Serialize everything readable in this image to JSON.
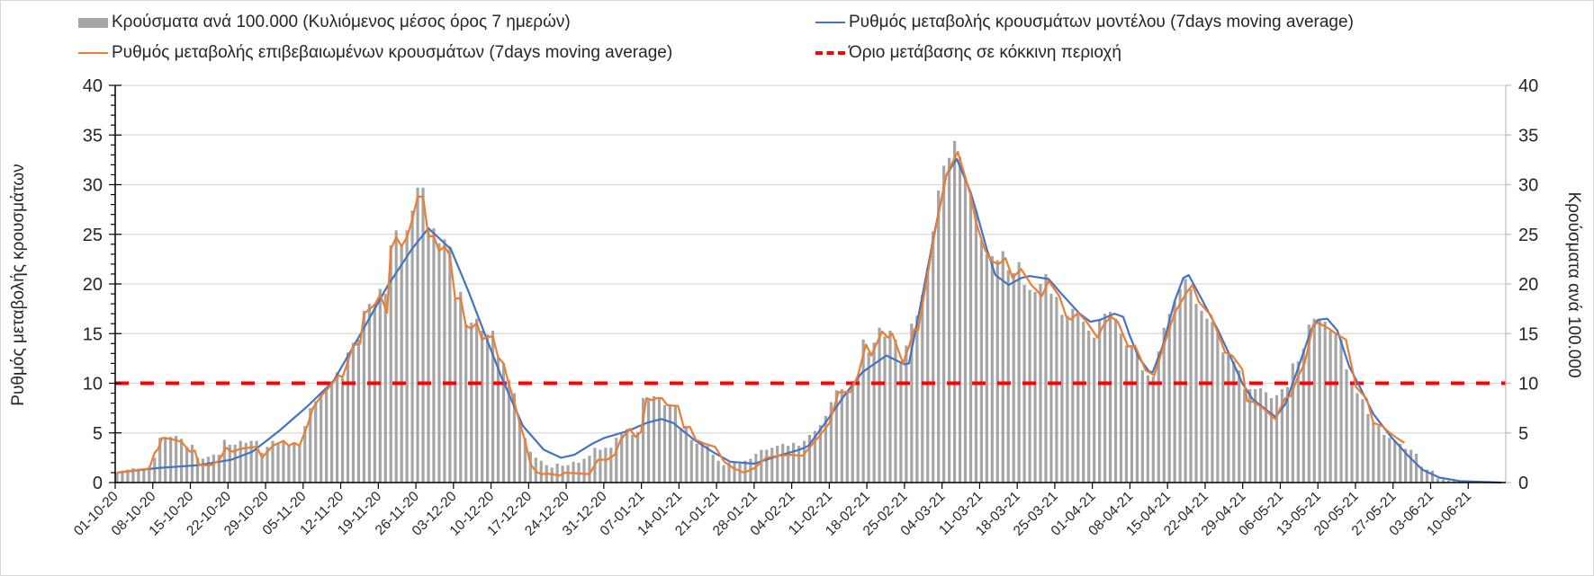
{
  "colors": {
    "bars": "#a5a5a5",
    "confirmed": "#ed7d31",
    "model": "#4472c4",
    "threshold": "#ff0000",
    "grid": "#d9d9d9"
  },
  "legend": {
    "bars": "Κρούσματα ανά 100.000 (Κυλιόμενος μέσος όρος 7 ημερών)",
    "confirmed": "Ρυθμός μεταβολής επιβεβαιωμένων κρουσμάτων (7days moving average)",
    "model": "Ρυθμός μεταβολής κρουσμάτων μοντέλου (7days moving average)",
    "threshold": "Όριο μετάβασης σε κόκκινη περιοχή"
  },
  "chart_data": {
    "type": "bar+line",
    "title": "",
    "ylabel_left": "Ρυθμός μεταβολής κρουσμάτων",
    "ylabel_right": "Κρούσματα ανά 100.000",
    "ylim": [
      0,
      40
    ],
    "yticks": [
      0,
      5,
      10,
      15,
      20,
      25,
      30,
      35,
      40
    ],
    "x_start": "01-10-20",
    "x_step_days": 1,
    "n_days": 259,
    "xtick_every_days": 7,
    "xtick_labels": [
      "01-10-20",
      "08-10-20",
      "15-10-20",
      "22-10-20",
      "29-10-20",
      "05-11-20",
      "12-11-20",
      "19-11-20",
      "26-11-20",
      "03-12-20",
      "10-12-20",
      "17-12-20",
      "24-12-20",
      "31-12-20",
      "07-01-21",
      "14-01-21",
      "21-01-21",
      "28-01-21",
      "04-02-21",
      "11-02-21",
      "18-02-21",
      "25-02-21",
      "04-03-21",
      "11-03-21",
      "18-03-21",
      "25-03-21",
      "01-04-21",
      "08-04-21",
      "15-04-21",
      "22-04-21",
      "29-04-21",
      "06-05-21",
      "13-05-21",
      "20-05-21",
      "27-05-21",
      "03-06-21",
      "10-06-21"
    ],
    "grid": true,
    "legend_position": "top",
    "threshold": 10,
    "bars": {
      "name": "Κρούσματα ανά 100.000 (Κυλιόμενος μέσος όρος 7 ημερών)",
      "values": [
        1.0,
        1.2,
        1.3,
        1.45,
        1.4,
        1.45,
        1.6,
        2.5,
        4.5,
        4.6,
        4.6,
        4.7,
        4.4,
        3.6,
        3.8,
        2.5,
        2.4,
        2.6,
        2.8,
        2.8,
        4.3,
        3.8,
        3.8,
        4.2,
        4.0,
        4.2,
        4.2,
        3.0,
        3.6,
        4.2,
        3.9,
        4.2,
        3.7,
        4.0,
        3.7,
        5.7,
        7.5,
        8.2,
        9.0,
        9.4,
        10.2,
        11.1,
        10.5,
        13.1,
        14.1,
        14.4,
        17.3,
        18.0,
        18.0,
        19.5,
        19.0,
        23.9,
        25.4,
        23.9,
        25.4,
        27.4,
        29.7,
        29.7,
        25.6,
        25.6,
        24.1,
        24.5,
        23.8,
        18.5,
        19.2,
        15.9,
        16.1,
        16.5,
        15.3,
        14.9,
        15.3,
        12.6,
        12.0,
        10.3,
        9.0,
        6.3,
        4.5,
        3.1,
        2.5,
        2.2,
        1.75,
        1.5,
        1.9,
        1.7,
        1.75,
        2.1,
        2.0,
        2.4,
        2.7,
        3.5,
        3.3,
        3.5,
        3.5,
        4.5,
        4.9,
        5.4,
        4.8,
        5.1,
        8.5,
        8.4,
        8.7,
        8.5,
        7.8,
        7.8,
        7.7,
        5.5,
        5.7,
        4.3,
        3.9,
        3.9,
        3.7,
        2.8,
        2.2,
        1.75,
        2.0,
        2.0,
        1.9,
        2.2,
        2.4,
        2.9,
        3.3,
        3.3,
        3.5,
        3.7,
        3.9,
        3.7,
        4.0,
        3.7,
        4.2,
        4.8,
        5.2,
        5.8,
        6.7,
        8.1,
        9.3,
        9.4,
        9.1,
        10.2,
        10.5,
        14.4,
        13.1,
        14.1,
        15.6,
        14.7,
        15.3,
        14.4,
        12.0,
        13.8,
        16.0,
        16.8,
        18.9,
        21.7,
        25.3,
        29.4,
        31.9,
        32.7,
        34.4,
        32.8,
        30.7,
        28.9,
        27.4,
        24.4,
        23.0,
        22.8,
        22.4,
        23.3,
        21.4,
        21.1,
        22.2,
        19.9,
        19.4,
        19.2,
        20.0,
        21.0,
        19.0,
        18.7,
        16.9,
        16.8,
        17.5,
        16.9,
        16.2,
        15.3,
        14.6,
        16.4,
        17.0,
        17.2,
        16.5,
        15.0,
        13.8,
        13.8,
        13.2,
        11.3,
        10.8,
        10.7,
        13.2,
        15.6,
        17.0,
        18.3,
        19.5,
        20.5,
        19.5,
        18.0,
        17.3,
        16.5,
        16.2,
        15.0,
        13.1,
        13.1,
        12.2,
        11.3,
        9.4,
        9.4,
        9.4,
        9.5,
        9.1,
        8.5,
        8.8,
        9.4,
        9.6,
        12.0,
        12.2,
        13.5,
        15.9,
        16.5,
        16.4,
        16.2,
        15.3,
        15.1,
        14.4,
        11.4,
        9.9,
        9.0,
        8.4,
        6.9,
        6.0,
        5.7,
        4.8,
        4.5,
        4.2,
        3.9,
        3.4,
        3.3,
        2.9,
        1.6,
        1.3,
        1.2,
        0.4,
        0.3,
        0.2,
        0.15,
        0.1,
        0.1,
        0.1,
        0.08,
        0.06,
        0.05,
        0.04,
        0.03,
        0.02
      ]
    },
    "confirmed": {
      "name": "Ρυθμός μεταβολής επιβεβαιωμένων κρουσμάτων (7days moving average)",
      "points": [
        [
          0,
          1.0
        ],
        [
          6,
          1.4
        ],
        [
          7,
          3.0
        ],
        [
          7.7,
          3.4
        ],
        [
          8.4,
          4.5
        ],
        [
          10,
          4.4
        ],
        [
          12,
          4.1
        ],
        [
          13.6,
          3.1
        ],
        [
          14.5,
          3.2
        ],
        [
          15.3,
          1.75
        ],
        [
          17.5,
          1.75
        ],
        [
          19,
          2.2
        ],
        [
          20.3,
          3.5
        ],
        [
          21.5,
          3.1
        ],
        [
          23,
          3.4
        ],
        [
          26,
          3.6
        ],
        [
          27,
          2.5
        ],
        [
          29,
          3.7
        ],
        [
          31,
          4.2
        ],
        [
          32,
          3.7
        ],
        [
          33,
          4.0
        ],
        [
          34,
          3.7
        ],
        [
          35.5,
          5.8
        ],
        [
          36.5,
          7.5
        ],
        [
          38,
          8.7
        ],
        [
          40,
          9.9
        ],
        [
          41.3,
          10.8
        ],
        [
          42,
          10.6
        ],
        [
          44,
          13.8
        ],
        [
          45.3,
          14.0
        ],
        [
          46,
          17.0
        ],
        [
          48,
          17.9
        ],
        [
          49,
          18.9
        ],
        [
          50.3,
          17.1
        ],
        [
          51,
          23.5
        ],
        [
          52,
          24.7
        ],
        [
          53,
          23.8
        ],
        [
          54,
          24.7
        ],
        [
          55,
          26.5
        ],
        [
          56,
          28.8
        ],
        [
          57,
          28.8
        ],
        [
          58,
          24.8
        ],
        [
          59,
          24.8
        ],
        [
          60,
          23.3
        ],
        [
          61,
          23.8
        ],
        [
          62,
          22.9
        ],
        [
          63,
          18.5
        ],
        [
          64,
          18.6
        ],
        [
          65,
          15.8
        ],
        [
          66,
          15.5
        ],
        [
          67,
          16.1
        ],
        [
          68,
          14.4
        ],
        [
          69,
          14.7
        ],
        [
          70,
          14.7
        ],
        [
          71,
          12.6
        ],
        [
          72,
          12.0
        ],
        [
          73,
          9.9
        ],
        [
          74,
          8.1
        ],
        [
          75,
          6.0
        ],
        [
          76,
          4.2
        ],
        [
          77,
          1.9
        ],
        [
          78,
          1.1
        ],
        [
          79,
          0.85
        ],
        [
          80,
          0.9
        ],
        [
          81,
          0.85
        ],
        [
          82.4,
          0.7
        ],
        [
          83.5,
          1.0
        ],
        [
          88,
          0.85
        ],
        [
          89.6,
          2.3
        ],
        [
          91.3,
          2.3
        ],
        [
          92.7,
          2.8
        ],
        [
          93.8,
          4.3
        ],
        [
          95.5,
          5.4
        ],
        [
          96.6,
          4.6
        ],
        [
          97.6,
          5.1
        ],
        [
          98.6,
          8.5
        ],
        [
          99.7,
          8.3
        ],
        [
          100.5,
          8.5
        ],
        [
          101.5,
          8.5
        ],
        [
          102.5,
          7.8
        ],
        [
          104.5,
          7.7
        ],
        [
          105.6,
          5.5
        ],
        [
          106.7,
          5.6
        ],
        [
          107.8,
          4.3
        ],
        [
          109.5,
          3.9
        ],
        [
          111.4,
          3.6
        ],
        [
          113.1,
          2.1
        ],
        [
          114.8,
          1.45
        ],
        [
          116.8,
          1.0
        ],
        [
          118.7,
          1.45
        ],
        [
          120.9,
          2.5
        ],
        [
          123.2,
          2.7
        ],
        [
          125.4,
          2.8
        ],
        [
          127.7,
          2.7
        ],
        [
          128.8,
          3.4
        ],
        [
          131,
          4.8
        ],
        [
          132.7,
          6.0
        ],
        [
          134.4,
          9.1
        ],
        [
          136.6,
          9.1
        ],
        [
          138,
          10.8
        ],
        [
          139.5,
          13.9
        ],
        [
          140.5,
          12.8
        ],
        [
          142.5,
          15.2
        ],
        [
          143.6,
          14.6
        ],
        [
          144.4,
          15.0
        ],
        [
          146.4,
          12.0
        ],
        [
          147.5,
          13.7
        ],
        [
          148.6,
          15.5
        ],
        [
          149.2,
          15.3
        ],
        [
          152.3,
          25.1
        ],
        [
          154.5,
          31.0
        ],
        [
          156.6,
          33.3
        ],
        [
          159,
          28.9
        ],
        [
          160,
          26.2
        ],
        [
          161.6,
          23.5
        ],
        [
          162.9,
          22.3
        ],
        [
          164.2,
          22.0
        ],
        [
          165.5,
          22.6
        ],
        [
          166.8,
          20.6
        ],
        [
          168.4,
          21.5
        ],
        [
          170.3,
          19.9
        ],
        [
          172.3,
          18.8
        ],
        [
          173.5,
          20.3
        ],
        [
          175.5,
          18.8
        ],
        [
          176.8,
          16.7
        ],
        [
          177.7,
          16.4
        ],
        [
          179,
          17.1
        ],
        [
          180.6,
          16.2
        ],
        [
          182.6,
          14.6
        ],
        [
          183.8,
          15.9
        ],
        [
          185.1,
          16.7
        ],
        [
          186.4,
          16.2
        ],
        [
          188.3,
          13.7
        ],
        [
          189.6,
          13.8
        ],
        [
          191.6,
          11.3
        ],
        [
          193.2,
          10.8
        ],
        [
          194.8,
          13.5
        ],
        [
          197,
          17.1
        ],
        [
          199.3,
          19.2
        ],
        [
          200.3,
          19.9
        ],
        [
          201.5,
          18.2
        ],
        [
          203.8,
          16.8
        ],
        [
          206.4,
          13.1
        ],
        [
          207.7,
          12.8
        ],
        [
          209.6,
          11.4
        ],
        [
          210.5,
          8.2
        ],
        [
          211.8,
          8.1
        ],
        [
          213.4,
          7.5
        ],
        [
          215.7,
          6.4
        ],
        [
          217.6,
          8.5
        ],
        [
          218.6,
          8.7
        ],
        [
          219.9,
          10.6
        ],
        [
          221.2,
          12.0
        ],
        [
          222.8,
          15.9
        ],
        [
          223.7,
          16.1
        ],
        [
          225.7,
          15.5
        ],
        [
          227.3,
          14.9
        ],
        [
          228.9,
          14.4
        ],
        [
          230.8,
          9.6
        ],
        [
          232.8,
          8.4
        ],
        [
          234,
          6.0
        ],
        [
          235.6,
          5.7
        ],
        [
          237.3,
          4.9
        ],
        [
          238.9,
          4.3
        ],
        [
          239.8,
          4.0
        ]
      ]
    },
    "model": {
      "name": "Ρυθμός μεταβολής κρουσμάτων μοντέλου (7days moving average)",
      "points": [
        [
          0,
          1.0
        ],
        [
          7.3,
          1.45
        ],
        [
          15.1,
          1.75
        ],
        [
          21.3,
          2.3
        ],
        [
          25.2,
          3.1
        ],
        [
          30.2,
          5.2
        ],
        [
          35.3,
          7.6
        ],
        [
          40.3,
          10.2
        ],
        [
          45.4,
          15.0
        ],
        [
          50.4,
          19.8
        ],
        [
          54.9,
          23.5
        ],
        [
          58,
          25.6
        ],
        [
          62.2,
          23.5
        ],
        [
          65.5,
          19.2
        ],
        [
          68.9,
          14.4
        ],
        [
          71.7,
          10.5
        ],
        [
          75.6,
          5.7
        ],
        [
          79.5,
          3.3
        ],
        [
          82.7,
          2.5
        ],
        [
          85.2,
          2.8
        ],
        [
          88.5,
          3.9
        ],
        [
          90.8,
          4.5
        ],
        [
          95.2,
          5.2
        ],
        [
          98.6,
          6.0
        ],
        [
          101.4,
          6.4
        ],
        [
          103.6,
          6.0
        ],
        [
          107.5,
          4.3
        ],
        [
          110.9,
          3.1
        ],
        [
          114.2,
          2.1
        ],
        [
          118.7,
          1.9
        ],
        [
          123.2,
          2.7
        ],
        [
          127.1,
          3.3
        ],
        [
          128.8,
          3.7
        ],
        [
          132.7,
          6.6
        ],
        [
          135.5,
          8.8
        ],
        [
          138.8,
          11.1
        ],
        [
          143.3,
          12.8
        ],
        [
          146.7,
          11.9
        ],
        [
          147.5,
          12.0
        ],
        [
          149.5,
          17.4
        ],
        [
          152.3,
          25.3
        ],
        [
          154.5,
          31.0
        ],
        [
          156.4,
          32.6
        ],
        [
          159,
          29.2
        ],
        [
          160,
          27.4
        ],
        [
          162,
          23.5
        ],
        [
          163.6,
          20.9
        ],
        [
          166.1,
          19.9
        ],
        [
          168.4,
          20.6
        ],
        [
          170,
          20.8
        ],
        [
          173.5,
          20.5
        ],
        [
          176.1,
          18.9
        ],
        [
          179.3,
          17.0
        ],
        [
          181.3,
          16.2
        ],
        [
          183.2,
          16.4
        ],
        [
          185.8,
          17.0
        ],
        [
          187.4,
          16.7
        ],
        [
          188.7,
          14.7
        ],
        [
          190.3,
          12.6
        ],
        [
          192.2,
          11.2
        ],
        [
          192.9,
          11.1
        ],
        [
          194.8,
          13.8
        ],
        [
          197,
          18.3
        ],
        [
          198.6,
          20.6
        ],
        [
          199.6,
          20.9
        ],
        [
          201.9,
          18.6
        ],
        [
          205.1,
          15.3
        ],
        [
          207.7,
          12.3
        ],
        [
          209.6,
          10.0
        ],
        [
          211.5,
          8.4
        ],
        [
          214.1,
          7.3
        ],
        [
          215.8,
          6.6
        ],
        [
          217.6,
          7.9
        ],
        [
          219.9,
          11.4
        ],
        [
          222.5,
          15.5
        ],
        [
          223.7,
          16.4
        ],
        [
          225.4,
          16.5
        ],
        [
          227.3,
          15.3
        ],
        [
          229.5,
          11.7
        ],
        [
          231.5,
          9.6
        ],
        [
          234,
          6.9
        ],
        [
          237.3,
          4.6
        ],
        [
          240.5,
          2.7
        ],
        [
          243.1,
          1.3
        ],
        [
          246.3,
          0.5
        ],
        [
          250.1,
          0.15
        ],
        [
          257.8,
          0.0
        ]
      ]
    }
  }
}
